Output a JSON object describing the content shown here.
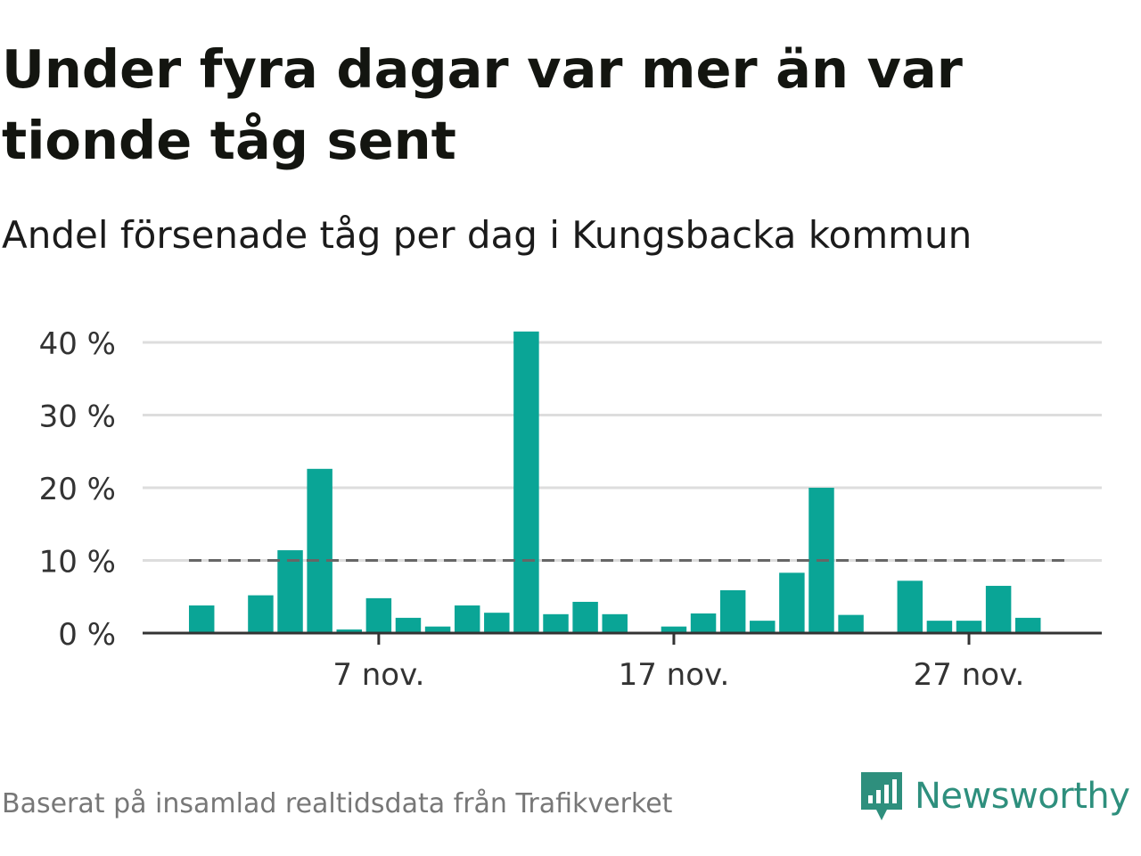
{
  "title": "Under fyra dagar var mer än var tionde tåg sent",
  "subtitle": "Andel försenade tåg per dag i Kungsbacka kommun",
  "source": "Baserat på insamlad realtidsdata från Trafikverket",
  "brand": {
    "name": "Newsworthy",
    "icon": "newsworthy-logo-icon",
    "color": "#2e8f7d"
  },
  "colors": {
    "bar": "#0aa596",
    "grid": "#dddddd",
    "axis": "#333333",
    "reference": "#666666"
  },
  "chart_data": {
    "type": "bar",
    "x_unit": "day of November",
    "x": [
      1,
      2,
      3,
      4,
      5,
      6,
      7,
      8,
      9,
      10,
      11,
      12,
      13,
      14,
      15,
      16,
      17,
      18,
      19,
      20,
      21,
      22,
      23,
      24,
      25,
      26,
      27,
      28,
      29,
      30
    ],
    "values": [
      3.8,
      0,
      5.2,
      11.4,
      22.6,
      0.5,
      4.8,
      2.1,
      0.9,
      3.8,
      2.8,
      41.5,
      2.6,
      4.3,
      2.6,
      0,
      0.9,
      2.7,
      5.9,
      1.7,
      8.3,
      20.0,
      2.5,
      0,
      7.2,
      1.7,
      1.7,
      6.5,
      2.1,
      0
    ],
    "x_ticks": [
      {
        "x": 7,
        "label": "7 nov."
      },
      {
        "x": 17,
        "label": "17 nov."
      },
      {
        "x": 27,
        "label": "27 nov."
      }
    ],
    "y_ticks": [
      {
        "value": 0,
        "label": "0 %"
      },
      {
        "value": 10,
        "label": "10 %"
      },
      {
        "value": 20,
        "label": "20 %"
      },
      {
        "value": 30,
        "label": "30 %"
      },
      {
        "value": 40,
        "label": "40 %"
      }
    ],
    "xlim": [
      -1,
      31.5
    ],
    "ylim": [
      0,
      40
    ],
    "reference_line": {
      "value": 10,
      "x_range": [
        1,
        30
      ],
      "style": "dashed"
    },
    "grid": true,
    "legend": "none"
  }
}
